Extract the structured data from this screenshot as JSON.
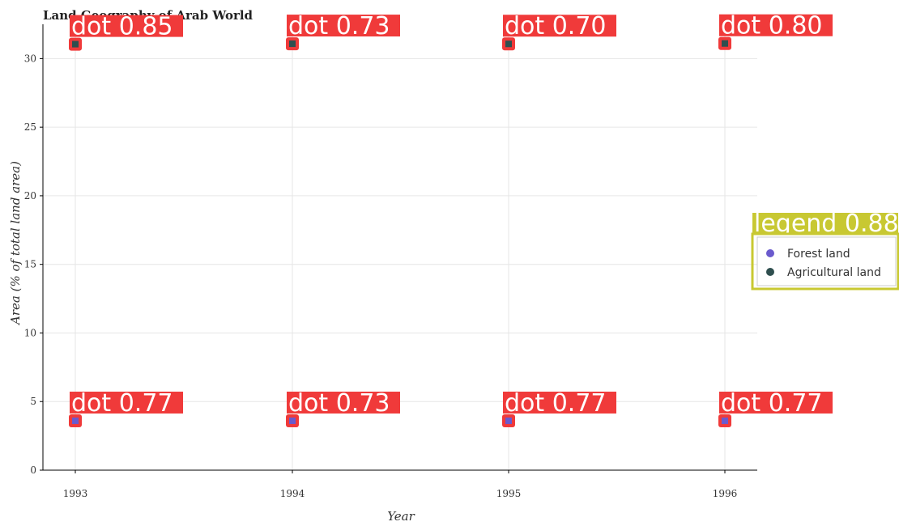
{
  "chart_data": {
    "type": "scatter",
    "title": "Land Geography of Arab World",
    "xlabel": "Year",
    "ylabel": "Area (% of total land area)",
    "x": [
      "1993",
      "1994",
      "1995",
      "1996"
    ],
    "ylim": [
      0,
      32.5
    ],
    "yticks": [
      0,
      5,
      10,
      15,
      20,
      25,
      30
    ],
    "grid": true,
    "legend_position": "center-right",
    "series": [
      {
        "name": "Forest land",
        "color": "#6a5acd",
        "values": [
          3.6,
          3.6,
          3.6,
          3.6
        ]
      },
      {
        "name": "Agricultural land",
        "color": "#2f4f4f",
        "values": [
          31.05,
          31.08,
          31.07,
          31.1
        ]
      }
    ],
    "annotations": {
      "agricultural_labels": [
        "dot 0.85",
        "dot 0.73",
        "dot 0.70",
        "dot 0.80"
      ],
      "forest_labels": [
        "dot 0.77",
        "dot 0.73",
        "dot 0.77",
        "dot 0.77"
      ],
      "legend_label": "legend 0.88",
      "label_bg_color": "#f03a3a",
      "legend_label_bg_color": "#c8c832"
    }
  }
}
